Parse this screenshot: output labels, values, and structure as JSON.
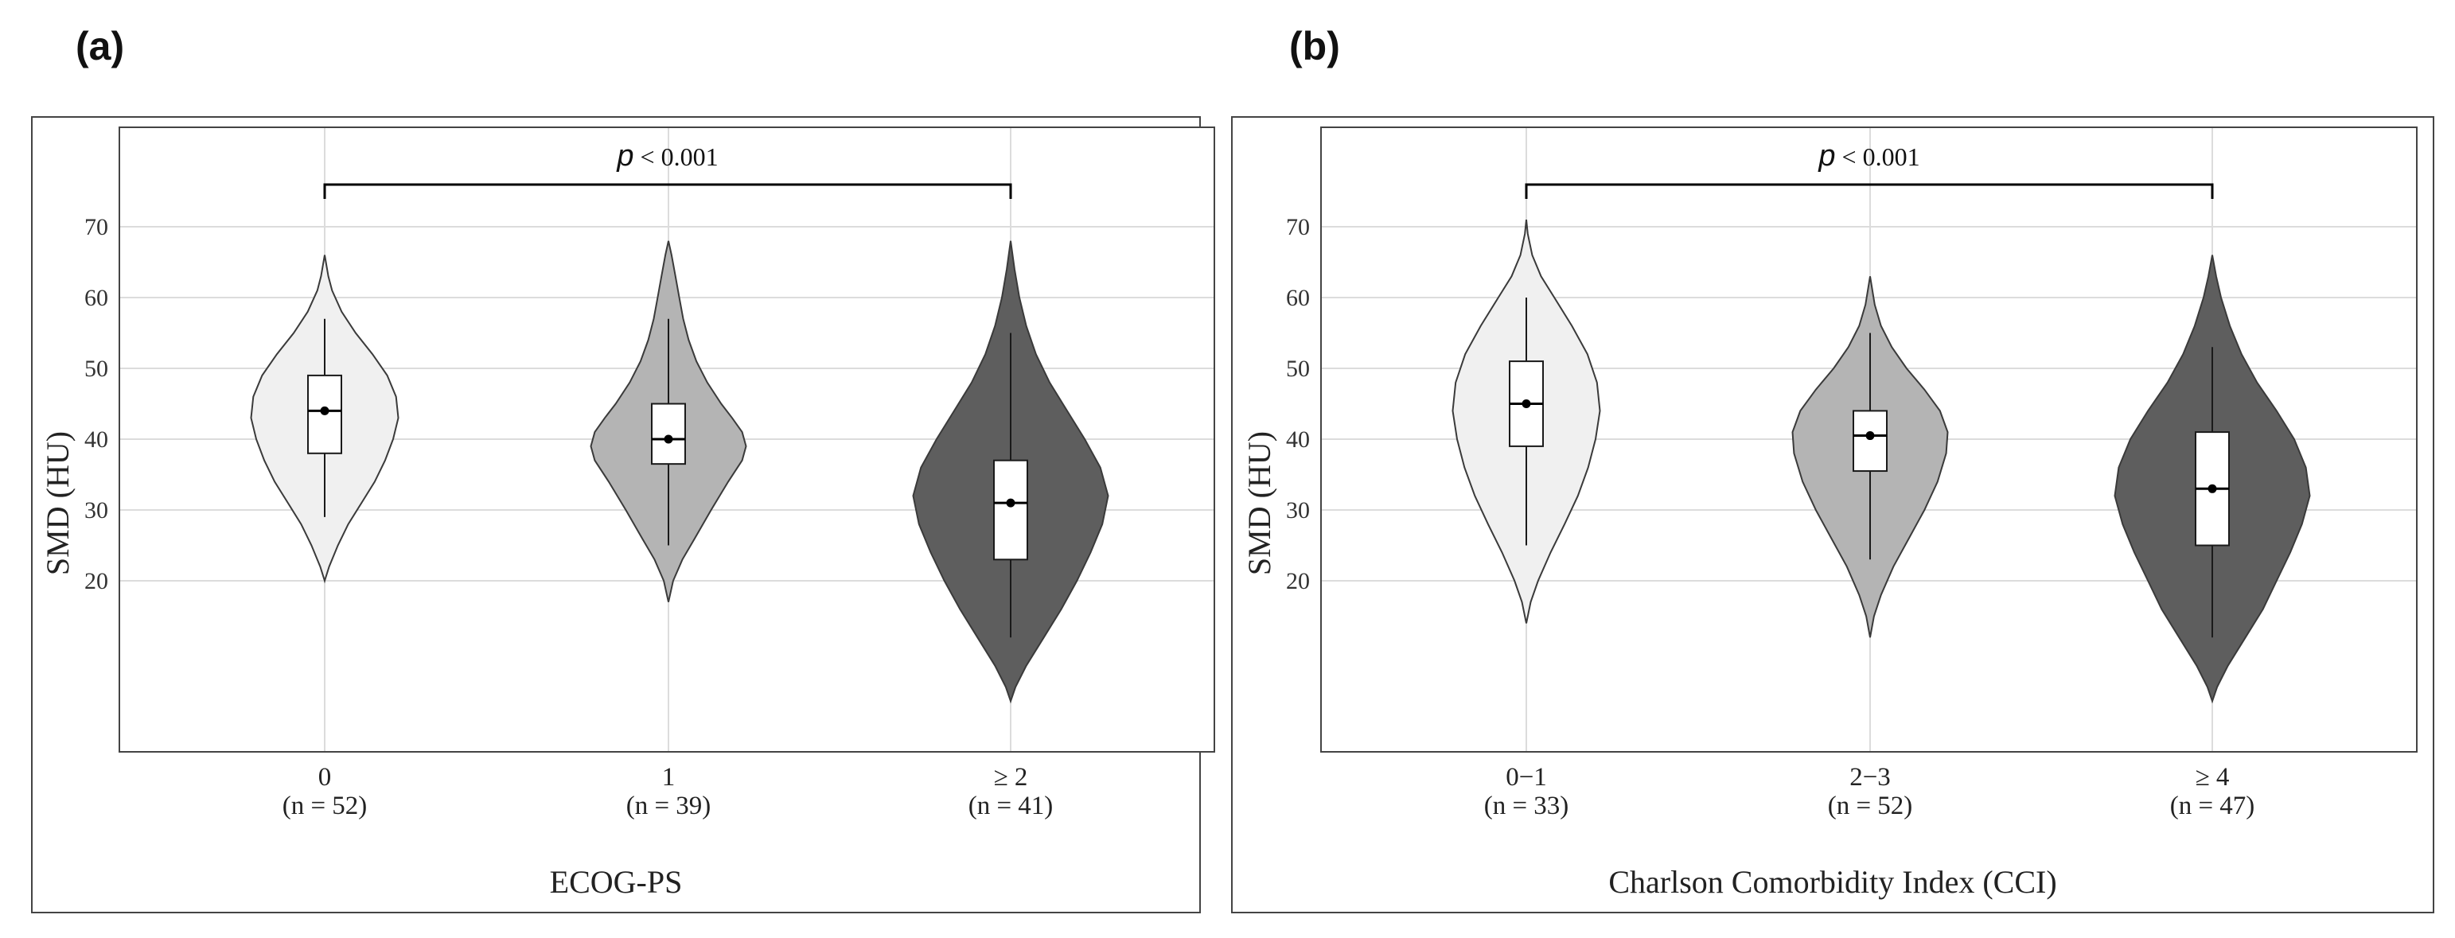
{
  "chart_data": [
    {
      "type": "violin",
      "panel_label": "(a)",
      "ylabel": "SMD (HU)",
      "xlabel": "ECOG-PS",
      "yticks": [
        20,
        30,
        40,
        50,
        60,
        70
      ],
      "grid": true,
      "categories": [
        "0",
        "1",
        "≥ 2"
      ],
      "n_labels": [
        "(n = 52)",
        "(n = 39)",
        "(n = 41)"
      ],
      "colors": [
        "#f0f0f0",
        "#b4b4b4",
        "#5e5e5e"
      ],
      "boxes": [
        {
          "q1": 38,
          "q3": 49,
          "whisker_low": 29,
          "whisker_high": 57,
          "median": 44
        },
        {
          "q1": 36.5,
          "q3": 45,
          "whisker_low": 25,
          "whisker_high": 57,
          "median": 40
        },
        {
          "q1": 23,
          "q3": 37,
          "whisker_low": 12,
          "whisker_high": 55,
          "median": 31
        }
      ],
      "densities": [
        [
          [
            20,
            0
          ],
          [
            22,
            0.06
          ],
          [
            25,
            0.18
          ],
          [
            28,
            0.32
          ],
          [
            31,
            0.5
          ],
          [
            34,
            0.68
          ],
          [
            37,
            0.82
          ],
          [
            40,
            0.93
          ],
          [
            43,
            1.0
          ],
          [
            46,
            0.97
          ],
          [
            49,
            0.85
          ],
          [
            52,
            0.65
          ],
          [
            55,
            0.42
          ],
          [
            58,
            0.23
          ],
          [
            61,
            0.1
          ],
          [
            63,
            0.05
          ],
          [
            66,
            0
          ]
        ],
        [
          [
            17,
            0
          ],
          [
            20,
            0.06
          ],
          [
            23,
            0.18
          ],
          [
            26,
            0.34
          ],
          [
            30,
            0.55
          ],
          [
            34,
            0.77
          ],
          [
            37,
            0.95
          ],
          [
            39,
            1.0
          ],
          [
            41,
            0.95
          ],
          [
            43,
            0.82
          ],
          [
            45,
            0.68
          ],
          [
            48,
            0.5
          ],
          [
            51,
            0.36
          ],
          [
            54,
            0.26
          ],
          [
            57,
            0.19
          ],
          [
            60,
            0.14
          ],
          [
            63,
            0.09
          ],
          [
            66,
            0.04
          ],
          [
            68,
            0
          ]
        ],
        [
          [
            3,
            0
          ],
          [
            5,
            0.05
          ],
          [
            8,
            0.16
          ],
          [
            12,
            0.34
          ],
          [
            16,
            0.52
          ],
          [
            20,
            0.68
          ],
          [
            24,
            0.82
          ],
          [
            28,
            0.94
          ],
          [
            32,
            1.0
          ],
          [
            36,
            0.92
          ],
          [
            40,
            0.76
          ],
          [
            44,
            0.58
          ],
          [
            48,
            0.4
          ],
          [
            52,
            0.26
          ],
          [
            56,
            0.16
          ],
          [
            60,
            0.09
          ],
          [
            64,
            0.04
          ],
          [
            68,
            0
          ]
        ]
      ],
      "significance": {
        "label_italic": "p",
        "label_rest": " < 0.001",
        "from": 0,
        "to": 2
      }
    },
    {
      "type": "violin",
      "panel_label": "(b)",
      "ylabel": "SMD (HU)",
      "xlabel": "Charlson Comorbidity Index (CCI)",
      "yticks": [
        20,
        30,
        40,
        50,
        60,
        70
      ],
      "grid": true,
      "categories": [
        "0−1",
        "2−3",
        "≥ 4"
      ],
      "n_labels": [
        "(n = 33)",
        "(n = 52)",
        "(n = 47)"
      ],
      "colors": [
        "#f0f0f0",
        "#b4b4b4",
        "#5e5e5e"
      ],
      "boxes": [
        {
          "q1": 39,
          "q3": 51,
          "whisker_low": 25,
          "whisker_high": 60,
          "median": 45
        },
        {
          "q1": 35.5,
          "q3": 44,
          "whisker_low": 23,
          "whisker_high": 55,
          "median": 40.5
        },
        {
          "q1": 25,
          "q3": 41,
          "whisker_low": 12,
          "whisker_high": 53,
          "median": 33
        }
      ],
      "densities": [
        [
          [
            14,
            0
          ],
          [
            17,
            0.06
          ],
          [
            20,
            0.16
          ],
          [
            24,
            0.33
          ],
          [
            28,
            0.52
          ],
          [
            32,
            0.7
          ],
          [
            36,
            0.84
          ],
          [
            40,
            0.94
          ],
          [
            44,
            1.0
          ],
          [
            48,
            0.96
          ],
          [
            52,
            0.83
          ],
          [
            56,
            0.62
          ],
          [
            60,
            0.38
          ],
          [
            63,
            0.2
          ],
          [
            66,
            0.08
          ],
          [
            69,
            0.02
          ],
          [
            71,
            0
          ]
        ],
        [
          [
            12,
            0
          ],
          [
            15,
            0.05
          ],
          [
            18,
            0.14
          ],
          [
            22,
            0.3
          ],
          [
            26,
            0.5
          ],
          [
            30,
            0.7
          ],
          [
            34,
            0.87
          ],
          [
            38,
            0.98
          ],
          [
            41,
            1.0
          ],
          [
            44,
            0.9
          ],
          [
            47,
            0.7
          ],
          [
            50,
            0.47
          ],
          [
            53,
            0.28
          ],
          [
            56,
            0.14
          ],
          [
            59,
            0.06
          ],
          [
            63,
            0
          ]
        ],
        [
          [
            3,
            0
          ],
          [
            5,
            0.05
          ],
          [
            8,
            0.16
          ],
          [
            12,
            0.34
          ],
          [
            16,
            0.52
          ],
          [
            20,
            0.66
          ],
          [
            24,
            0.8
          ],
          [
            28,
            0.92
          ],
          [
            32,
            1.0
          ],
          [
            36,
            0.96
          ],
          [
            40,
            0.84
          ],
          [
            44,
            0.66
          ],
          [
            48,
            0.46
          ],
          [
            52,
            0.3
          ],
          [
            56,
            0.18
          ],
          [
            60,
            0.09
          ],
          [
            63,
            0.04
          ],
          [
            66,
            0
          ]
        ]
      ],
      "significance": {
        "label_italic": "p",
        "label_rest": " < 0.001",
        "from": 0,
        "to": 2
      }
    }
  ]
}
